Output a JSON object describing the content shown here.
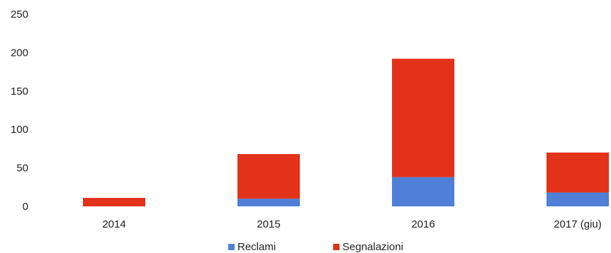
{
  "chart_data": {
    "type": "bar",
    "stacked": true,
    "categories": [
      "2014",
      "2015",
      "2016",
      "2017 (giu)"
    ],
    "series": [
      {
        "name": "Reclami",
        "values": [
          0,
          10,
          38,
          18
        ]
      },
      {
        "name": "Segnalazioni",
        "values": [
          11,
          58,
          154,
          52
        ]
      }
    ],
    "yticks": [
      0,
      50,
      100,
      150,
      200,
      250
    ],
    "ylim": [
      0,
      250
    ],
    "grid": false,
    "legend_position": "bottom",
    "colors": {
      "Reclami": "#4f7fd6",
      "Segnalazioni": "#e2321a"
    }
  }
}
